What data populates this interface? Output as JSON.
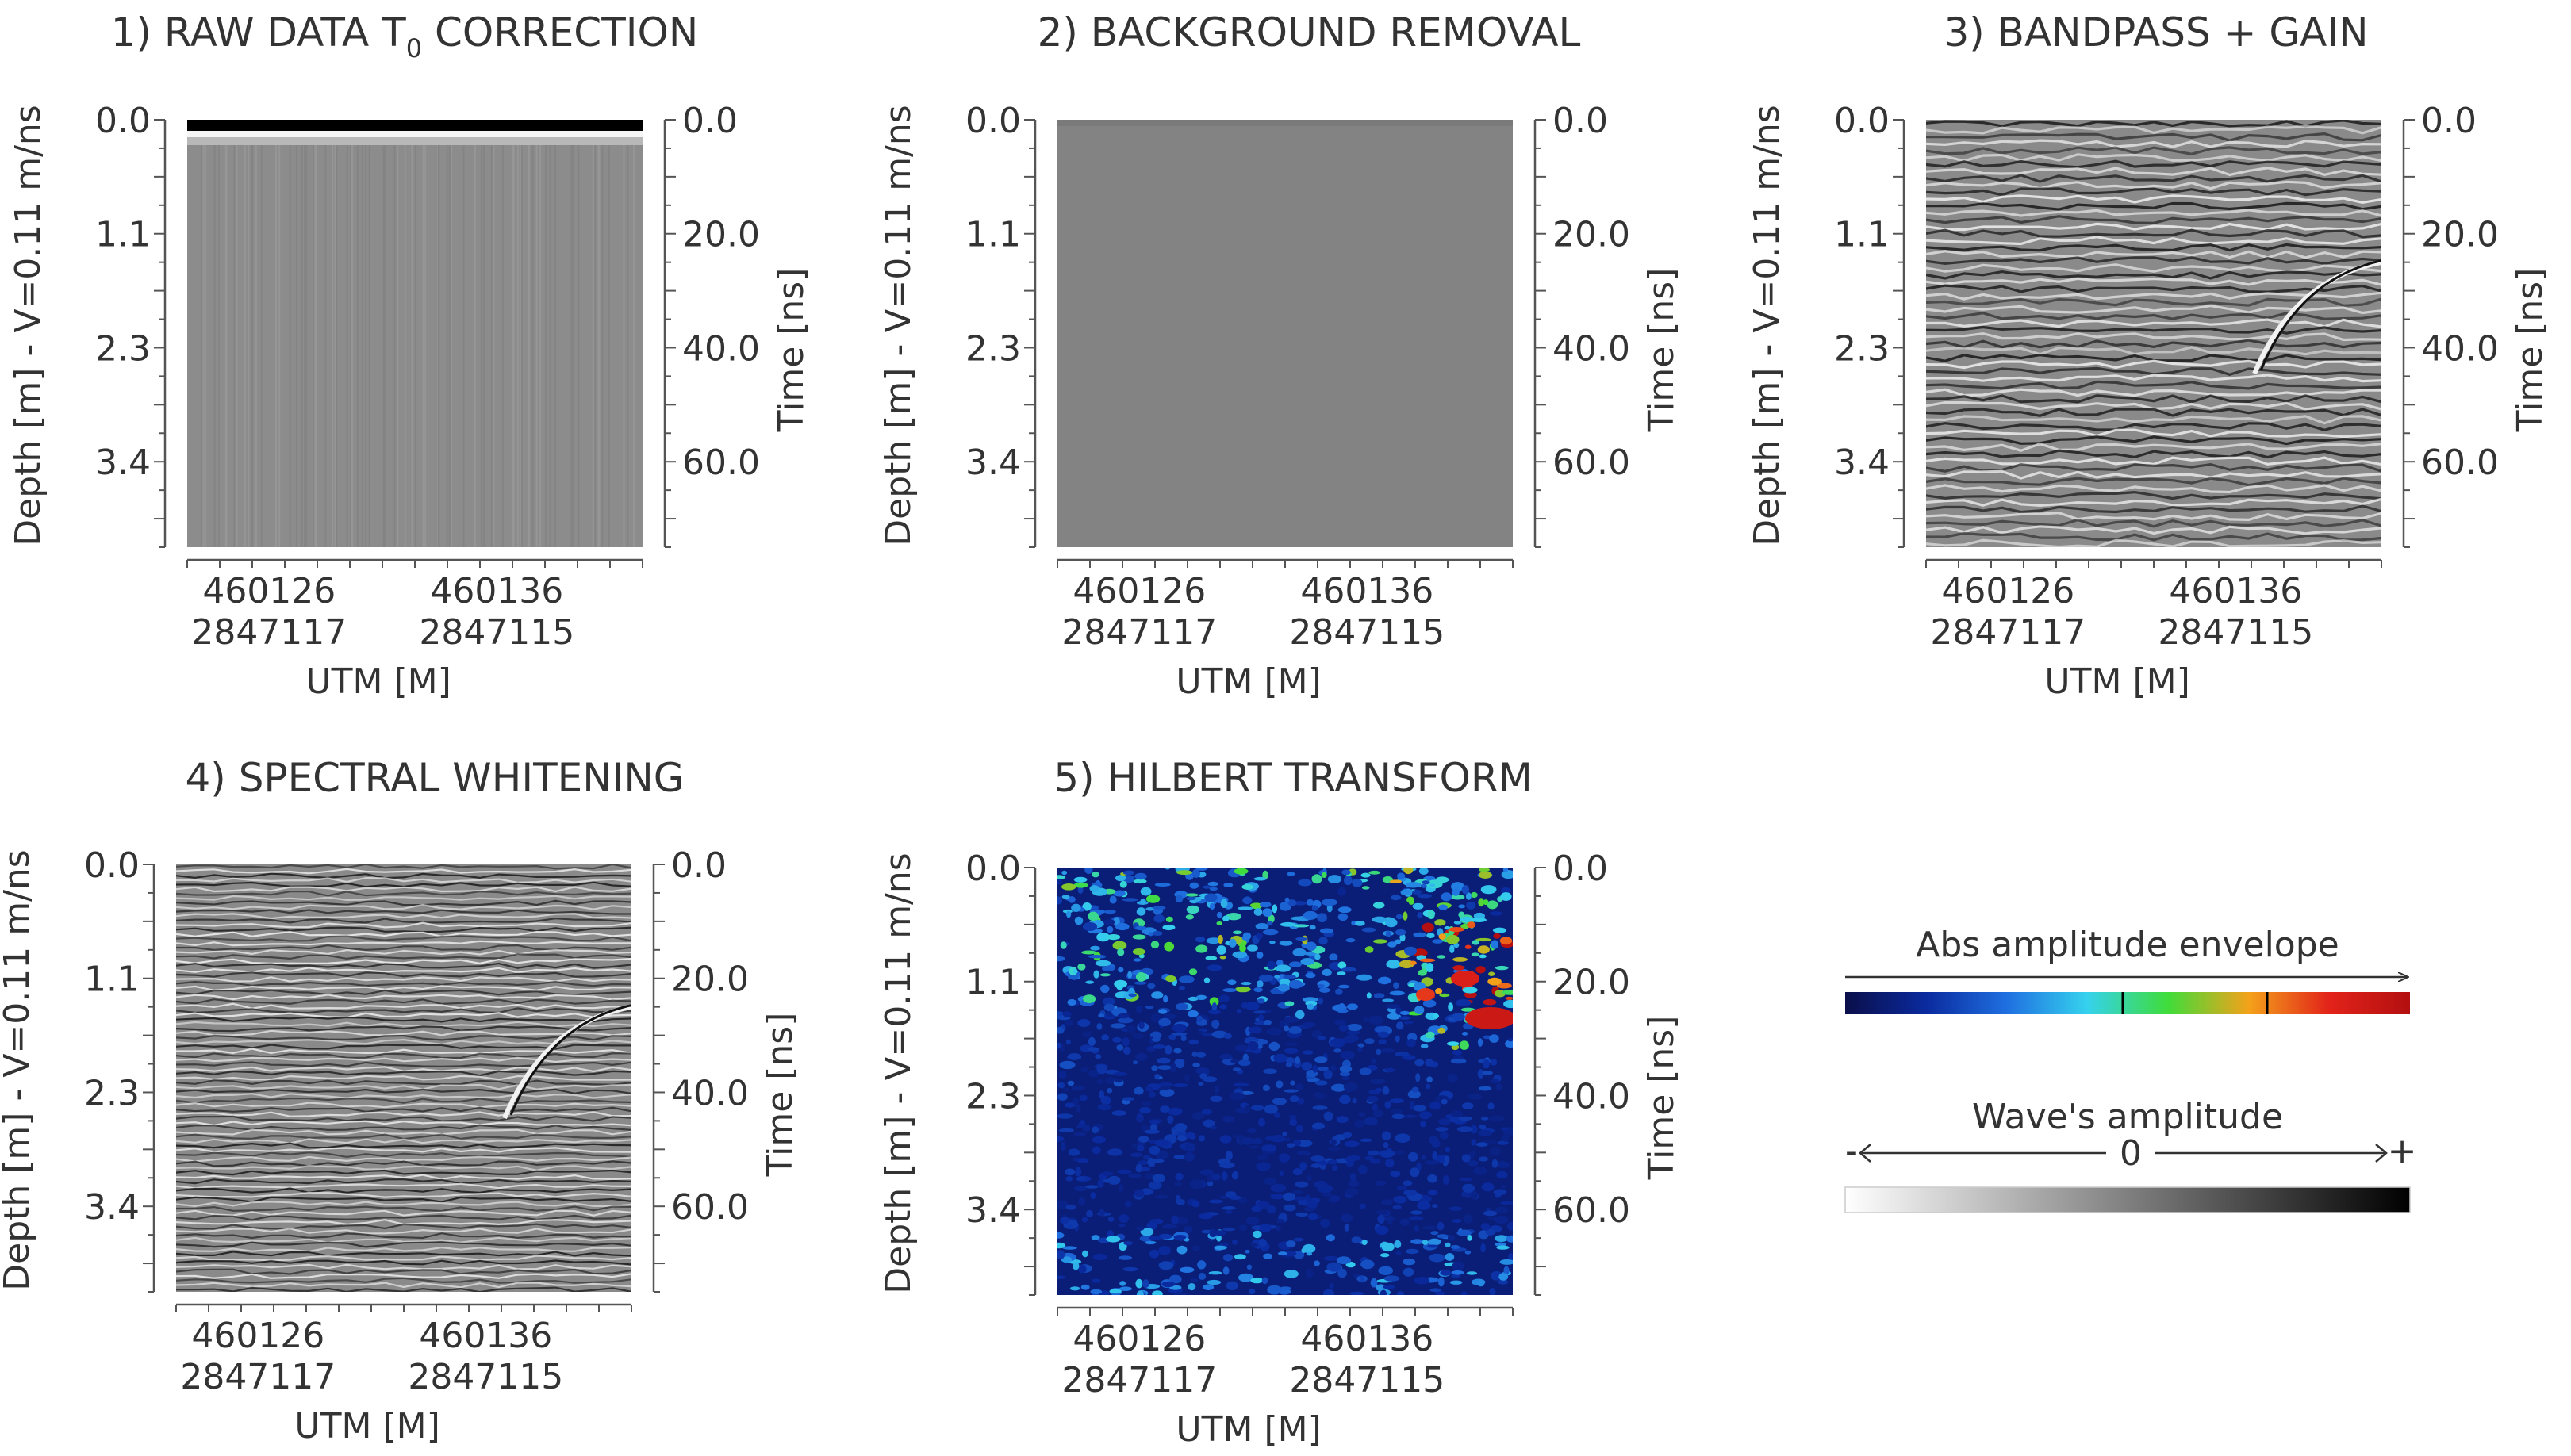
{
  "figure": {
    "units": {
      "depth_axis_label": "Depth [m] - V=0.11 m/ns",
      "time_axis_label": "Time [ns]",
      "x_axis_label": "UTM [M]"
    },
    "legend": {
      "envelope_title": "Abs amplitude envelope",
      "wave_title": "Wave's amplitude",
      "wave_minus": "-",
      "wave_zero": "0",
      "wave_plus": "+",
      "envelope_colors": [
        "#0b0f4a",
        "#0a2a9e",
        "#1f6fe0",
        "#35d2ee",
        "#3fdc3a",
        "#f4a21a",
        "#e2231a",
        "#b30f10"
      ],
      "wave_colors": [
        "#ffffff",
        "#000000"
      ]
    }
  },
  "chart_data": [
    {
      "type": "heatmap",
      "title": "1) RAW DATA T₀ CORRECTION",
      "title_main": "1) RAW DATA T",
      "title_sub": "0",
      "title_rest": " CORRECTION",
      "depth_ticks": [
        "0.0",
        "1.1",
        "2.3",
        "3.4"
      ],
      "depth_values": [
        0.0,
        1.1,
        2.3,
        3.4
      ],
      "time_ticks": [
        "0.0",
        "20.0",
        "40.0",
        "60.0"
      ],
      "time_values": [
        0.0,
        20.0,
        40.0,
        60.0
      ],
      "ylim": [
        0,
        75
      ],
      "x_ticks": [
        {
          "easting": "460126",
          "northing": "2847117"
        },
        {
          "easting": "460136",
          "northing": "2847115"
        }
      ],
      "colormap": "grayscale",
      "texture": "raw"
    },
    {
      "type": "heatmap",
      "title": "2) BACKGROUND REMOVAL",
      "depth_ticks": [
        "0.0",
        "1.1",
        "2.3",
        "3.4"
      ],
      "depth_values": [
        0.0,
        1.1,
        2.3,
        3.4
      ],
      "time_ticks": [
        "0.0",
        "20.0",
        "40.0",
        "60.0"
      ],
      "time_values": [
        0.0,
        20.0,
        40.0,
        60.0
      ],
      "ylim": [
        0,
        75
      ],
      "x_ticks": [
        {
          "easting": "460126",
          "northing": "2847117"
        },
        {
          "easting": "460136",
          "northing": "2847115"
        }
      ],
      "colormap": "grayscale",
      "texture": "flat"
    },
    {
      "type": "heatmap",
      "title": "3) BANDPASS + GAIN",
      "depth_ticks": [
        "0.0",
        "1.1",
        "2.3",
        "3.4"
      ],
      "depth_values": [
        0.0,
        1.1,
        2.3,
        3.4
      ],
      "time_ticks": [
        "0.0",
        "20.0",
        "40.0",
        "60.0"
      ],
      "time_values": [
        0.0,
        20.0,
        40.0,
        60.0
      ],
      "ylim": [
        0,
        75
      ],
      "x_ticks": [
        {
          "easting": "460126",
          "northing": "2847117"
        },
        {
          "easting": "460136",
          "northing": "2847115"
        }
      ],
      "colormap": "grayscale",
      "texture": "reflections"
    },
    {
      "type": "heatmap",
      "title": "4) SPECTRAL WHITENING",
      "depth_ticks": [
        "0.0",
        "1.1",
        "2.3",
        "3.4"
      ],
      "depth_values": [
        0.0,
        1.1,
        2.3,
        3.4
      ],
      "time_ticks": [
        "0.0",
        "20.0",
        "40.0",
        "60.0"
      ],
      "time_values": [
        0.0,
        20.0,
        40.0,
        60.0
      ],
      "ylim": [
        0,
        75
      ],
      "x_ticks": [
        {
          "easting": "460126",
          "northing": "2847117"
        },
        {
          "easting": "460136",
          "northing": "2847115"
        }
      ],
      "colormap": "grayscale",
      "texture": "whitened"
    },
    {
      "type": "heatmap",
      "title": "5) HILBERT TRANSFORM",
      "depth_ticks": [
        "0.0",
        "1.1",
        "2.3",
        "3.4"
      ],
      "depth_values": [
        0.0,
        1.1,
        2.3,
        3.4
      ],
      "time_ticks": [
        "0.0",
        "20.0",
        "40.0",
        "60.0"
      ],
      "time_values": [
        0.0,
        20.0,
        40.0,
        60.0
      ],
      "ylim": [
        0,
        75
      ],
      "x_ticks": [
        {
          "easting": "460126",
          "northing": "2847117"
        },
        {
          "easting": "460136",
          "northing": "2847115"
        }
      ],
      "colormap": "jet",
      "texture": "envelope"
    }
  ]
}
